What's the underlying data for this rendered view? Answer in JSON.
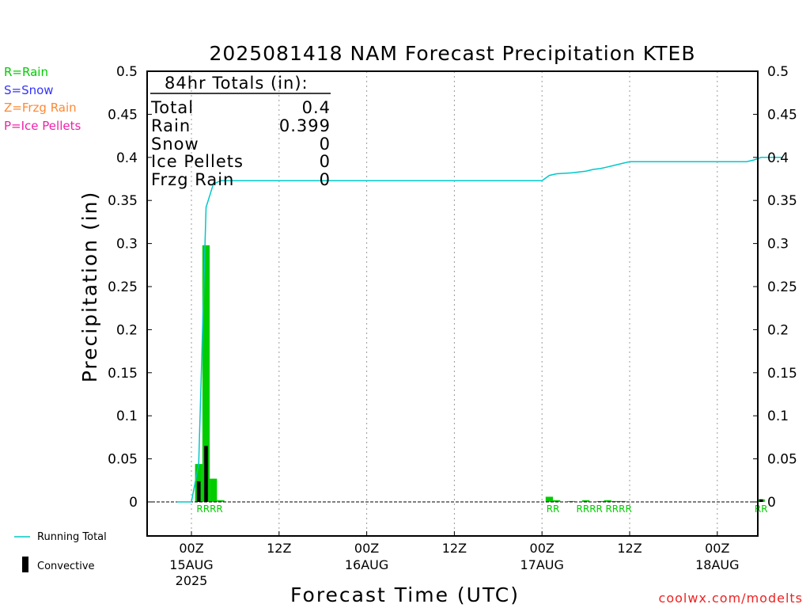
{
  "chart_data": {
    "type": "bar",
    "title": "2025081418 NAM Forecast Precipitation KTEB",
    "xlabel": "Forecast Time (UTC)",
    "ylabel": "Precipitation (in)",
    "ylim": [
      -0.04,
      0.5
    ],
    "yticks": [
      0,
      0.05,
      0.1,
      0.15,
      0.2,
      0.25,
      0.3,
      0.35,
      0.4,
      0.45,
      0.5
    ],
    "x_units": "forecast hours from 2025-08-14 18Z",
    "xlim": [
      3,
      87
    ],
    "xticks": [
      {
        "hour": 6,
        "label": "00Z",
        "date": "15AUG",
        "year": "2025"
      },
      {
        "hour": 18,
        "label": "12Z",
        "date": "",
        "year": ""
      },
      {
        "hour": 30,
        "label": "00Z",
        "date": "16AUG",
        "year": ""
      },
      {
        "hour": 42,
        "label": "12Z",
        "date": "",
        "year": ""
      },
      {
        "hour": 54,
        "label": "00Z",
        "date": "17AUG",
        "year": ""
      },
      {
        "hour": 66,
        "label": "12Z",
        "date": "",
        "year": ""
      },
      {
        "hour": 78,
        "label": "00Z",
        "date": "18AUG",
        "year": ""
      }
    ],
    "grid": "vertical dotted at tick marks",
    "series": [
      {
        "name": "Rain",
        "color": "#00cc00",
        "x": [
          7,
          8,
          9,
          10,
          55,
          56,
          58,
          60,
          62,
          63,
          64,
          65,
          84
        ],
        "values": [
          0.044,
          0.298,
          0.027,
          0.002,
          0.006,
          0.002,
          0.001,
          0.002,
          0.001,
          0.002,
          0.001,
          0.001,
          0.003
        ]
      },
      {
        "name": "Convective",
        "color": "#000000",
        "x": [
          7,
          8,
          84
        ],
        "values": [
          0.024,
          0.065,
          0.003
        ]
      }
    ],
    "running_total": {
      "name": "Running Total",
      "color": "#00c8c8",
      "points": [
        [
          4,
          0
        ],
        [
          6,
          0
        ],
        [
          7,
          0.044
        ],
        [
          8,
          0.342
        ],
        [
          9,
          0.369
        ],
        [
          10,
          0.373
        ],
        [
          54,
          0.373
        ],
        [
          55,
          0.379
        ],
        [
          56,
          0.381
        ],
        [
          58,
          0.382
        ],
        [
          60,
          0.384
        ],
        [
          61,
          0.386
        ],
        [
          62,
          0.387
        ],
        [
          63,
          0.389
        ],
        [
          64,
          0.391
        ],
        [
          65,
          0.393
        ],
        [
          66,
          0.395
        ],
        [
          82,
          0.395
        ],
        [
          83,
          0.397
        ],
        [
          84,
          0.4
        ],
        [
          87,
          0.4
        ]
      ]
    },
    "ptype_labels": [
      {
        "hour": 8.5,
        "text": "RRRR"
      },
      {
        "hour": 55.5,
        "text": "RR"
      },
      {
        "hour": 60.5,
        "text": "RRRR"
      },
      {
        "hour": 64.5,
        "text": "RRRR"
      },
      {
        "hour": 84,
        "text": "RR"
      }
    ]
  },
  "legend_ptype": [
    {
      "text": "R=Rain",
      "color": "#00cc00"
    },
    {
      "text": "S=Snow",
      "color": "#3333ff"
    },
    {
      "text": "Z=Frzg Rain",
      "color": "#ff8833"
    },
    {
      "text": "P=Ice Pellets",
      "color": "#ee22aa"
    }
  ],
  "totals": {
    "header": "84hr Totals (in):",
    "rows": [
      {
        "label": "Total",
        "value": "0.4"
      },
      {
        "label": "Rain",
        "value": "0.399"
      },
      {
        "label": "Snow",
        "value": "0"
      },
      {
        "label": "Ice Pellets",
        "value": "0"
      },
      {
        "label": "Frzg Rain",
        "value": "0"
      }
    ]
  },
  "bottom_legend": {
    "running_total": "Running Total",
    "convective": "Convective"
  },
  "credit": "coolwx.com/modelts"
}
